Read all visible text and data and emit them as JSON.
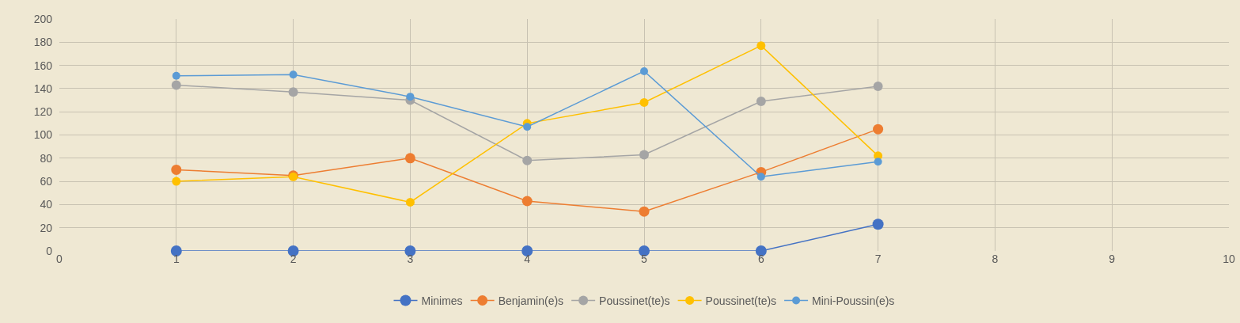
{
  "chart_data": {
    "type": "line",
    "x": [
      1,
      2,
      3,
      4,
      5,
      6,
      7
    ],
    "series": [
      {
        "name": "Minimes",
        "color": "#4472c4",
        "values": [
          0,
          0,
          0,
          0,
          0,
          0,
          23
        ]
      },
      {
        "name": "Benjamin(e)s",
        "color": "#ed7d31",
        "values": [
          70,
          65,
          80,
          43,
          34,
          68,
          105
        ]
      },
      {
        "name": "Poussinet(te)s",
        "color": "#a5a5a5",
        "values": [
          143,
          137,
          130,
          78,
          83,
          129,
          142
        ]
      },
      {
        "name": "Poussinet(te)s",
        "color": "#ffc000",
        "values": [
          60,
          64,
          42,
          110,
          128,
          177,
          82
        ]
      },
      {
        "name": "Mini-Poussin(e)s",
        "color": "#5b9bd5",
        "values": [
          151,
          152,
          133,
          107,
          155,
          64,
          77
        ]
      }
    ],
    "xlim": [
      0,
      10
    ],
    "xticks": [
      0,
      1,
      2,
      3,
      4,
      5,
      6,
      7,
      8,
      9,
      10
    ],
    "ylim": [
      0,
      200
    ],
    "yticks": [
      0,
      20,
      40,
      60,
      80,
      100,
      120,
      140,
      160,
      180,
      200
    ],
    "grid": true,
    "legend": "bottom",
    "marker": "circle",
    "line_style": "solid"
  }
}
